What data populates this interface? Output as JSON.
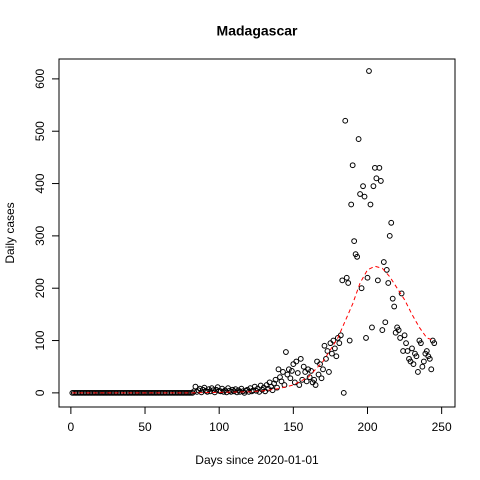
{
  "chart_data": {
    "type": "scatter",
    "title": "Madagascar",
    "xlabel": "Days since 2020-01-01",
    "ylabel": "Daily cases",
    "xlim": [
      -8,
      259
    ],
    "ylim": [
      -27,
      638
    ],
    "xticks": [
      0,
      50,
      100,
      150,
      200,
      250
    ],
    "yticks": [
      0,
      100,
      200,
      300,
      400,
      500,
      600
    ],
    "series": [
      {
        "type": "points",
        "color": "#000000",
        "x": [
          1,
          2,
          3,
          4,
          5,
          6,
          7,
          8,
          9,
          10,
          11,
          12,
          13,
          14,
          15,
          16,
          17,
          18,
          19,
          20,
          21,
          22,
          23,
          24,
          25,
          26,
          27,
          28,
          29,
          30,
          31,
          32,
          33,
          34,
          35,
          36,
          37,
          38,
          39,
          40,
          41,
          42,
          43,
          44,
          45,
          46,
          47,
          48,
          49,
          50,
          51,
          52,
          53,
          54,
          55,
          56,
          57,
          58,
          59,
          60,
          61,
          62,
          63,
          64,
          65,
          66,
          67,
          68,
          69,
          70,
          71,
          72,
          73,
          74,
          75,
          76,
          77,
          78,
          79,
          80,
          81,
          82,
          83,
          84,
          85,
          86,
          87,
          88,
          89,
          90,
          91,
          92,
          93,
          94,
          95,
          96,
          97,
          98,
          99,
          100,
          101,
          102,
          103,
          104,
          105,
          106,
          107,
          108,
          109,
          110,
          111,
          112,
          113,
          114,
          115,
          116,
          117,
          118,
          119,
          120,
          121,
          122,
          123,
          124,
          125,
          126,
          127,
          128,
          129,
          130,
          131,
          132,
          133,
          134,
          135,
          136,
          137,
          138,
          139,
          140,
          141,
          142,
          143,
          144,
          145,
          146,
          147,
          148,
          149,
          150,
          151,
          152,
          153,
          154,
          155,
          156,
          157,
          158,
          159,
          160,
          161,
          162,
          163,
          164,
          165,
          166,
          167,
          168,
          169,
          170,
          171,
          172,
          173,
          174,
          175,
          176,
          177,
          178,
          179,
          180,
          181,
          182,
          183,
          184,
          185,
          186,
          187,
          188,
          189,
          190,
          191,
          192,
          193,
          194,
          195,
          196,
          197,
          198,
          199,
          200,
          201,
          202,
          203,
          204,
          205,
          206,
          207,
          208,
          209,
          210,
          211,
          212,
          213,
          214,
          215,
          216,
          217,
          218,
          219,
          220,
          221,
          222,
          223,
          224,
          225,
          226,
          227,
          228,
          229,
          230,
          231,
          232,
          233,
          234,
          235,
          236,
          237,
          238,
          239,
          240,
          241,
          242,
          243,
          244,
          245
        ],
        "values": [
          0,
          0,
          0,
          0,
          0,
          0,
          0,
          0,
          0,
          0,
          0,
          0,
          0,
          0,
          0,
          0,
          0,
          0,
          0,
          0,
          0,
          0,
          0,
          0,
          0,
          0,
          0,
          0,
          0,
          0,
          0,
          0,
          0,
          0,
          0,
          0,
          0,
          0,
          0,
          0,
          0,
          0,
          0,
          0,
          0,
          0,
          0,
          0,
          0,
          0,
          0,
          0,
          0,
          0,
          0,
          0,
          0,
          0,
          0,
          0,
          0,
          0,
          0,
          0,
          0,
          0,
          0,
          0,
          0,
          0,
          0,
          0,
          0,
          0,
          0,
          0,
          0,
          0,
          0,
          0,
          0,
          0,
          3,
          12,
          2,
          5,
          8,
          1,
          6,
          10,
          4,
          2,
          7,
          3,
          9,
          5,
          1,
          6,
          11,
          4,
          3,
          8,
          2,
          5,
          1,
          9,
          4,
          2,
          6,
          3,
          7,
          1,
          5,
          2,
          8,
          3,
          0,
          4,
          6,
          2,
          9,
          3,
          5,
          12,
          4,
          8,
          2,
          14,
          6,
          10,
          3,
          15,
          8,
          20,
          12,
          5,
          18,
          25,
          10,
          45,
          30,
          22,
          40,
          15,
          78,
          35,
          45,
          28,
          42,
          55,
          20,
          60,
          38,
          15,
          65,
          25,
          50,
          40,
          22,
          45,
          30,
          42,
          20,
          25,
          15,
          60,
          35,
          55,
          28,
          45,
          90,
          65,
          80,
          40,
          95,
          75,
          100,
          85,
          70,
          105,
          95,
          110,
          215,
          0,
          520,
          220,
          210,
          100,
          360,
          435,
          290,
          265,
          260,
          485,
          380,
          200,
          395,
          375,
          105,
          220,
          615,
          360,
          125,
          395,
          430,
          410,
          215,
          430,
          405,
          120,
          250,
          135,
          235,
          210,
          300,
          325,
          180,
          165,
          115,
          125,
          120,
          105,
          190,
          80,
          110,
          95,
          80,
          65,
          60,
          85,
          55,
          75,
          70,
          40,
          100,
          95,
          50,
          60,
          75,
          80,
          70,
          65,
          45,
          100,
          95
        ]
      },
      {
        "type": "line",
        "color": "#ff0000",
        "dashed": true,
        "x": [
          1,
          20,
          40,
          60,
          80,
          100,
          120,
          130,
          140,
          150,
          160,
          170,
          180,
          190,
          195,
          200,
          205,
          210,
          215,
          220,
          225,
          230,
          235,
          240,
          245
        ],
        "values": [
          0,
          0,
          0,
          0,
          0,
          1,
          2,
          4,
          8,
          15,
          30,
          60,
          105,
          170,
          210,
          235,
          242,
          238,
          222,
          200,
          178,
          150,
          125,
          105,
          100
        ]
      }
    ]
  }
}
